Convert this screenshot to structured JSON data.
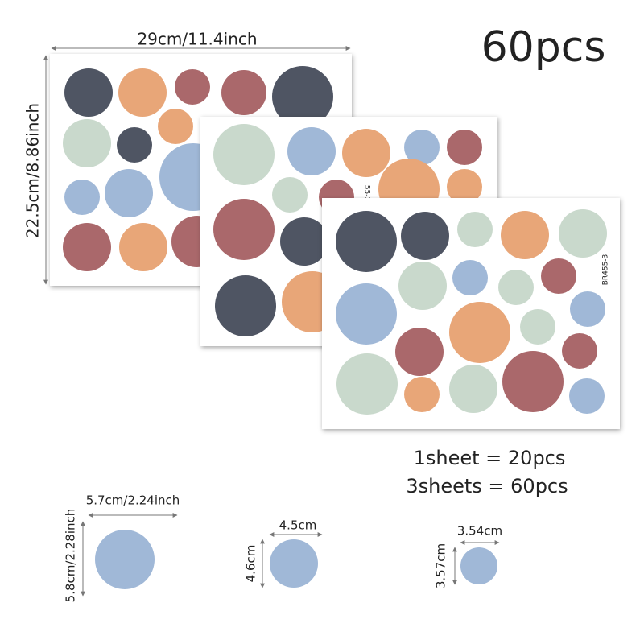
{
  "title": "60pcs",
  "sheet_width": "29cm/11.4inch",
  "sheet_height": "22.5cm/8.86inch",
  "sheet_codes": [
    "55-2",
    "BR455-3"
  ],
  "quantity": [
    "1sheet = 20pcs",
    "3sheets = 60pcs"
  ],
  "sizes": [
    {
      "width": "5.7cm/2.24inch",
      "height": "5.8cm/2.28inch"
    },
    {
      "width": "4.5cm",
      "height": "4.6cm"
    },
    {
      "width": "3.54cm",
      "height": "3.57cm"
    }
  ]
}
